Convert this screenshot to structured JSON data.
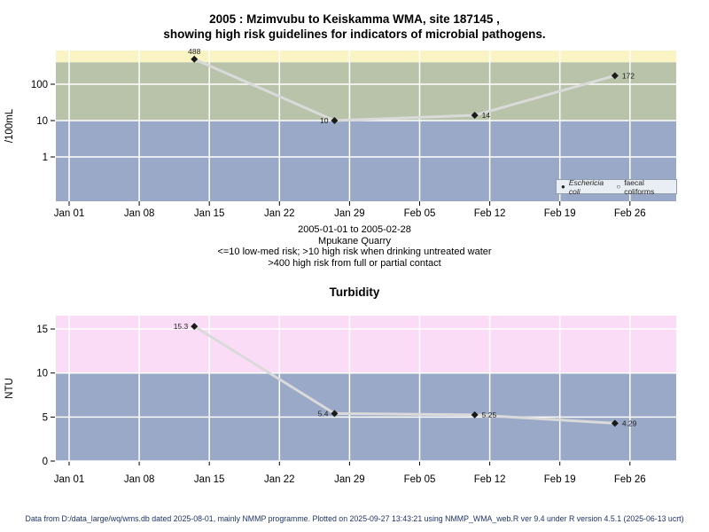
{
  "title": {
    "line1": "2005 : Mzimvubu to Keiskamma WMA, site 187145 ,",
    "line2": "showing high risk guidelines for indicators of microbial pathogens."
  },
  "subtitle": {
    "line1": "2005-01-01 to 2005-02-28",
    "line2": "Mpukane Quarry",
    "line3": "<=10 low-med risk; >10 high risk when drinking untreated water",
    "line4": ">400 high risk from full or partial contact"
  },
  "legend": {
    "items": [
      {
        "marker": "filled-point",
        "label": "Eschericia coli"
      },
      {
        "marker": "open-circle",
        "label": "faecal coliforms"
      }
    ]
  },
  "footer": {
    "text": "Data from D:/data_large/wq/wms.db dated 2025-08-01, mainly NMMP programme. Plotted on 2025-09-27 13:43:21 using NMMP_WMA_web.R ver 9.4 under R version 4.5.1 (2025-06-13 ucrt)"
  },
  "colors": {
    "band_high_contact_yellow": "#FAF4C4",
    "band_high_drinking_green": "#B8C3AA",
    "band_low_med_blue": "#9AA9C7",
    "band_turbidity_pink": "#FBDCF6",
    "gridline": "#FFFFFF",
    "series_line": "#DADADA",
    "marker": "#1A1A1A",
    "footer_text": "#1F3468"
  },
  "chart_data": [
    {
      "type": "line",
      "title": "",
      "ylabel": "/100mL",
      "yscale": "log",
      "yticks": [
        1,
        10,
        100
      ],
      "ylim": [
        0.06,
        845
      ],
      "grid": "white on colored risk bands",
      "legend_position": "inside bottom-right",
      "xticklabels": [
        "Jan 01",
        "Jan 08",
        "Jan 15",
        "Jan 22",
        "Jan 29",
        "Feb 05",
        "Feb 12",
        "Feb 19",
        "Feb 26"
      ],
      "bands": [
        {
          "hi": null,
          "lo": 400,
          "color": "#FAF4C4"
        },
        {
          "hi": 400,
          "lo": 10,
          "color": "#B8C3AA"
        },
        {
          "hi": 10,
          "lo": null,
          "color": "#9AA9C7"
        }
      ],
      "series": [
        {
          "name": "Eschericia coli",
          "dates": [
            "Jan 13",
            "Jan 27",
            "Feb 10",
            "Feb 24"
          ],
          "days": [
            12.5,
            26.5,
            40.5,
            54.5
          ],
          "values": [
            488,
            10,
            14,
            172
          ],
          "labels": [
            "488",
            "10",
            "14",
            "172"
          ],
          "label_side": [
            "above",
            "left",
            "right",
            "right"
          ]
        },
        {
          "name": "faecal coliforms",
          "dates": [],
          "days": [],
          "values": [],
          "labels": [],
          "label_side": []
        }
      ]
    },
    {
      "type": "line",
      "title": "Turbidity",
      "ylabel": "NTU",
      "yscale": "linear",
      "yticks": [
        0,
        5,
        10,
        15
      ],
      "ylim": [
        0,
        16.5
      ],
      "grid": "white on colored risk bands",
      "xticklabels": [
        "Jan 01",
        "Jan 08",
        "Jan 15",
        "Jan 22",
        "Jan 29",
        "Feb 05",
        "Feb 12",
        "Feb 19",
        "Feb 26"
      ],
      "bands": [
        {
          "hi": null,
          "lo": 10,
          "color": "#FBDCF6"
        },
        {
          "hi": 10,
          "lo": null,
          "color": "#9AA9C7"
        }
      ],
      "series": [
        {
          "name": "Turbidity",
          "dates": [
            "Jan 13",
            "Jan 27",
            "Feb 10",
            "Feb 24"
          ],
          "days": [
            12.5,
            26.5,
            40.5,
            54.5
          ],
          "values": [
            15.3,
            5.4,
            5.25,
            4.29
          ],
          "labels": [
            "15.3",
            "5.4",
            "5.25",
            "4.29"
          ],
          "label_side": [
            "left",
            "left",
            "right",
            "right"
          ]
        }
      ]
    }
  ]
}
